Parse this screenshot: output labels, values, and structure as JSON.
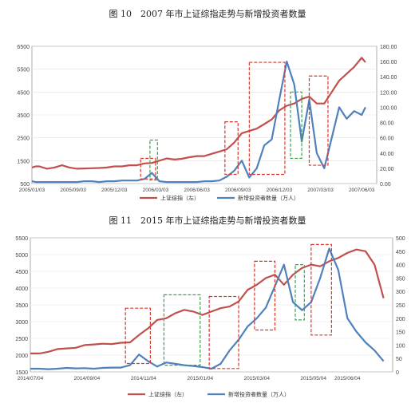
{
  "figures": [
    {
      "title": "图 10　2007 年市上证综指走势与新增投资者数量"
    },
    {
      "title": "图 11　2015 年市上证综指走势与新增投资者数量"
    }
  ],
  "chart_data": [
    {
      "type": "line",
      "title": "图 10　2007 年市上证综指走势与新增投资者数量",
      "categories": [
        "2005/01/03",
        "2005/09/03",
        "2005/12/03",
        "2006/03/03",
        "2006/06/03",
        "2006/09/03",
        "2006/12/03",
        "2007/03/03",
        "2007/06/03",
        "2007/09/03"
      ],
      "ylim_left": [
        500,
        6500
      ],
      "yticks_left": [
        "500",
        "1500",
        "2500",
        "3500",
        "4500",
        "5500",
        "6500"
      ],
      "ylim_right": [
        0,
        180
      ],
      "yticks_right": [
        "0.00",
        "20.00",
        "40.00",
        "60.00",
        "80.00",
        "100.00",
        "120.00",
        "140.00",
        "160.00",
        "180.00"
      ],
      "legend_placement": "bottom",
      "series": [
        {
          "name": "上证综指（左）",
          "axis": "left",
          "color": "#c0504d",
          "x": [
            0,
            1,
            2,
            4,
            6,
            8,
            10,
            12,
            14,
            16,
            18,
            20,
            22,
            24,
            26,
            28,
            30,
            32,
            34,
            36,
            38,
            40,
            42,
            44,
            46,
            48,
            50,
            52,
            54,
            56,
            58,
            60,
            62,
            64,
            66,
            68,
            70,
            72,
            74,
            76,
            78,
            80,
            82,
            84,
            86,
            88,
            89
          ],
          "values": [
            1200,
            1250,
            1250,
            1150,
            1200,
            1300,
            1200,
            1150,
            1160,
            1170,
            1180,
            1200,
            1250,
            1250,
            1300,
            1300,
            1380,
            1400,
            1500,
            1600,
            1550,
            1580,
            1650,
            1700,
            1700,
            1800,
            1900,
            2000,
            2300,
            2700,
            2800,
            2900,
            3100,
            3300,
            3700,
            3900,
            4000,
            4200,
            4300,
            4000,
            4000,
            4500,
            5000,
            5300,
            5600,
            6000,
            5800
          ]
        },
        {
          "name": "新增投资者数量（万人）",
          "axis": "right",
          "color": "#4f81bd",
          "x": [
            0,
            1,
            2,
            4,
            6,
            8,
            10,
            12,
            14,
            16,
            18,
            20,
            22,
            24,
            26,
            28,
            30,
            32,
            34,
            36,
            38,
            40,
            42,
            44,
            46,
            48,
            50,
            52,
            54,
            56,
            58,
            60,
            62,
            64,
            66,
            68,
            70,
            72,
            74,
            76,
            78,
            80,
            82,
            84,
            86,
            88,
            89
          ],
          "values": [
            3,
            2,
            2,
            2,
            2,
            2,
            2,
            2,
            3,
            3,
            2,
            3,
            3,
            4,
            4,
            4,
            6,
            14,
            3,
            2,
            2,
            2,
            2,
            2,
            3,
            3,
            4,
            9,
            17,
            30,
            8,
            20,
            50,
            58,
            110,
            160,
            130,
            55,
            110,
            40,
            20,
            60,
            100,
            85,
            95,
            90,
            100
          ]
        }
      ],
      "highlight_boxes": [
        {
          "color": "#d9362b",
          "x": [
            29,
            33
          ],
          "y_left": [
            700,
            1600
          ]
        },
        {
          "color": "#3aa54a",
          "x": [
            31.5,
            33.5
          ],
          "y_left": [
            650,
            2400
          ]
        },
        {
          "color": "#d9362b",
          "x": [
            51.5,
            55
          ],
          "y_left": [
            900,
            3200
          ]
        },
        {
          "color": "#d9362b",
          "x": [
            58,
            67.5
          ],
          "y_left": [
            900,
            5800
          ]
        },
        {
          "color": "#3aa54a",
          "x": [
            69,
            72
          ],
          "y_left": [
            1600,
            4500
          ]
        },
        {
          "color": "#d9362b",
          "x": [
            74,
            79
          ],
          "y_left": [
            1300,
            5200
          ]
        }
      ]
    },
    {
      "type": "line",
      "title": "图 11　2015 年市上证综指走势与新增投资者数量",
      "categories": [
        "2014/07/04",
        "2014/09/04",
        "2014/11/04",
        "2015/01/04",
        "2015/03/04",
        "2015/05/04",
        "2015/06/04"
      ],
      "ylim_left": [
        1500,
        5500
      ],
      "yticks_left": [
        "1500",
        "2000",
        "2500",
        "3000",
        "3500",
        "4000",
        "4500",
        "5000",
        "5500"
      ],
      "ylim_right": [
        0,
        500
      ],
      "yticks_right": [
        "0",
        "50",
        "100",
        "150",
        "200",
        "250",
        "300",
        "350",
        "400",
        "450",
        "500"
      ],
      "legend_placement": "bottom",
      "series": [
        {
          "name": "上证综指（左）",
          "axis": "left",
          "color": "#c0504d",
          "x": [
            0,
            2,
            4,
            6,
            8,
            10,
            12,
            14,
            16,
            18,
            20,
            22,
            24,
            26,
            28,
            30,
            32,
            34,
            36,
            38,
            40,
            42,
            44,
            46,
            48,
            50,
            52,
            54,
            56,
            58,
            60,
            62,
            64,
            66,
            68,
            70,
            72,
            74,
            76,
            78
          ],
          "values": [
            2050,
            2050,
            2100,
            2180,
            2200,
            2220,
            2300,
            2320,
            2340,
            2330,
            2370,
            2380,
            2600,
            2800,
            3050,
            3100,
            3250,
            3350,
            3300,
            3200,
            3300,
            3400,
            3450,
            3600,
            3950,
            4100,
            4300,
            4400,
            4100,
            4400,
            4600,
            4700,
            4650,
            4800,
            4900,
            5050,
            5150,
            5100,
            4700,
            3700
          ]
        },
        {
          "name": "新增投资者数量（万人）",
          "axis": "right",
          "color": "#4f81bd",
          "x": [
            0,
            2,
            4,
            6,
            8,
            10,
            12,
            14,
            16,
            18,
            20,
            22,
            24,
            26,
            28,
            30,
            32,
            34,
            36,
            38,
            40,
            42,
            44,
            46,
            48,
            50,
            52,
            54,
            56,
            58,
            60,
            62,
            64,
            66,
            68,
            70,
            72,
            74,
            76,
            78
          ],
          "values": [
            12,
            12,
            10,
            12,
            15,
            13,
            14,
            12,
            15,
            16,
            16,
            25,
            65,
            40,
            20,
            35,
            30,
            25,
            22,
            18,
            12,
            30,
            80,
            120,
            170,
            200,
            240,
            320,
            400,
            260,
            230,
            260,
            350,
            460,
            380,
            200,
            150,
            110,
            80,
            40
          ]
        }
      ],
      "highlight_boxes": [
        {
          "color": "#d9362b",
          "x": [
            21,
            26.5
          ],
          "y_left": [
            1750,
            3400
          ]
        },
        {
          "color": "#3aa54a",
          "x": [
            29.5,
            37.5
          ],
          "y_left": [
            1700,
            3800
          ]
        },
        {
          "color": "#d9362b",
          "x": [
            39.5,
            46
          ],
          "y_left": [
            1600,
            3750
          ]
        },
        {
          "color": "#d9362b",
          "x": [
            49.5,
            54
          ],
          "y_left": [
            2750,
            4800
          ]
        },
        {
          "color": "#3aa54a",
          "x": [
            58.5,
            60.5
          ],
          "y_left": [
            3050,
            4700
          ]
        },
        {
          "color": "#d9362b",
          "x": [
            62,
            66.5
          ],
          "y_left": [
            2600,
            5300
          ]
        }
      ]
    }
  ]
}
